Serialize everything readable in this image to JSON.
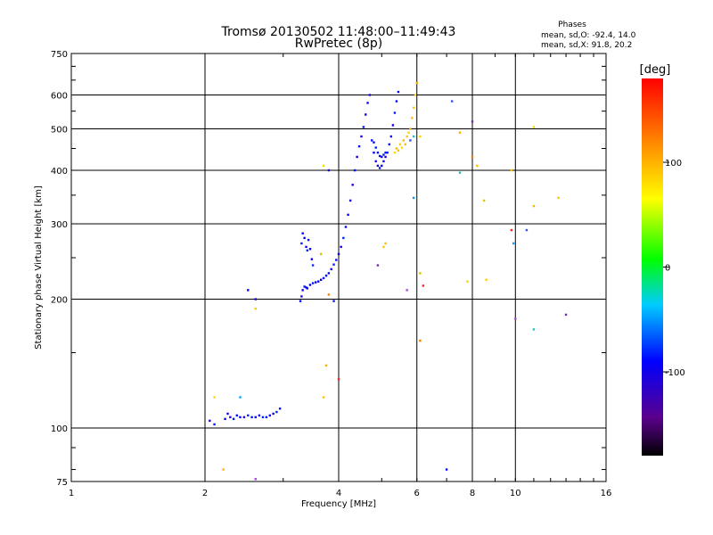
{
  "chart_data": {
    "type": "scatter",
    "title": "Tromsø 20130502 11:48:00–11:49:43",
    "subtitle": "RwPretec (8p)",
    "xlabel": "Frequency [MHz]",
    "ylabel": "Stationary phase Virtual Height [km]",
    "x_scale": "log",
    "y_scale": "log",
    "xlim": [
      1,
      16
    ],
    "ylim": [
      75,
      750
    ],
    "x_ticks": [
      1,
      2,
      4,
      6,
      8,
      10,
      16
    ],
    "x_tick_labels": [
      "1",
      "2",
      "4",
      "6",
      "8",
      "10",
      "16"
    ],
    "y_ticks": [
      75,
      100,
      200,
      300,
      400,
      500,
      600,
      750
    ],
    "y_tick_labels": [
      "75",
      "100",
      "200",
      "300",
      "400",
      "500",
      "600",
      "750"
    ],
    "grid": true,
    "phases_box": {
      "title": "Phases",
      "line1": "mean, sd,O: -92.4, 14.0",
      "line2": "mean, sd,X:  91.8, 20.2"
    },
    "colorbar": {
      "label": "[deg]",
      "range": [
        -180,
        180
      ],
      "ticks": [
        100,
        0,
        -100
      ],
      "tick_labels": [
        "100",
        "0",
        "-100"
      ]
    },
    "series": [
      {
        "mode": "O",
        "phase": -92,
        "points": [
          [
            2.05,
            104
          ],
          [
            2.1,
            102
          ],
          [
            2.22,
            105
          ],
          [
            2.25,
            108
          ],
          [
            2.28,
            106
          ],
          [
            2.32,
            105
          ],
          [
            2.36,
            107
          ],
          [
            2.4,
            106
          ],
          [
            2.45,
            106
          ],
          [
            2.5,
            107
          ],
          [
            2.55,
            106
          ],
          [
            2.6,
            106
          ],
          [
            2.65,
            107
          ],
          [
            2.7,
            106
          ],
          [
            2.75,
            106
          ],
          [
            2.8,
            107
          ],
          [
            2.85,
            108
          ],
          [
            2.9,
            109
          ],
          [
            2.95,
            111
          ],
          [
            3.28,
            198
          ],
          [
            3.3,
            203
          ],
          [
            3.32,
            210
          ],
          [
            3.35,
            214
          ],
          [
            3.38,
            213
          ],
          [
            3.4,
            212
          ],
          [
            3.45,
            216
          ],
          [
            3.5,
            218
          ],
          [
            3.55,
            219
          ],
          [
            3.6,
            220
          ],
          [
            3.65,
            222
          ],
          [
            3.7,
            224
          ],
          [
            3.75,
            227
          ],
          [
            3.8,
            230
          ],
          [
            3.85,
            235
          ],
          [
            3.9,
            241
          ],
          [
            3.95,
            247
          ],
          [
            4.0,
            255
          ],
          [
            4.05,
            265
          ],
          [
            4.1,
            278
          ],
          [
            4.15,
            295
          ],
          [
            4.2,
            315
          ],
          [
            4.25,
            340
          ],
          [
            4.3,
            370
          ],
          [
            4.35,
            400
          ],
          [
            4.4,
            430
          ],
          [
            4.45,
            455
          ],
          [
            4.5,
            480
          ],
          [
            4.55,
            505
          ],
          [
            4.6,
            540
          ],
          [
            4.65,
            575
          ],
          [
            4.7,
            600
          ],
          [
            3.3,
            270
          ],
          [
            3.32,
            285
          ],
          [
            3.35,
            278
          ],
          [
            3.38,
            265
          ],
          [
            3.4,
            260
          ],
          [
            3.42,
            275
          ],
          [
            3.45,
            262
          ],
          [
            3.48,
            248
          ],
          [
            3.5,
            240
          ],
          [
            4.75,
            470
          ],
          [
            4.8,
            440
          ],
          [
            4.85,
            420
          ],
          [
            4.9,
            410
          ],
          [
            4.95,
            405
          ],
          [
            5.0,
            410
          ],
          [
            5.05,
            420
          ],
          [
            5.1,
            430
          ],
          [
            5.15,
            440
          ],
          [
            5.2,
            460
          ],
          [
            5.25,
            480
          ],
          [
            5.3,
            510
          ],
          [
            5.35,
            545
          ],
          [
            5.4,
            580
          ],
          [
            5.45,
            610
          ],
          [
            4.8,
            465
          ],
          [
            4.85,
            452
          ],
          [
            4.9,
            440
          ],
          [
            4.95,
            432
          ],
          [
            5.0,
            430
          ],
          [
            5.05,
            435
          ],
          [
            5.1,
            440
          ],
          [
            2.5,
            210
          ],
          [
            2.6,
            200
          ],
          [
            3.8,
            400
          ],
          [
            3.9,
            198
          ],
          [
            7.0,
            80
          ]
        ]
      },
      {
        "mode": "X",
        "phase": 92,
        "points": [
          [
            5.35,
            440
          ],
          [
            5.4,
            450
          ],
          [
            5.45,
            445
          ],
          [
            5.5,
            460
          ],
          [
            5.55,
            452
          ],
          [
            5.6,
            470
          ],
          [
            5.65,
            460
          ],
          [
            5.7,
            480
          ],
          [
            5.75,
            490
          ],
          [
            5.8,
            500
          ],
          [
            5.85,
            530
          ],
          [
            5.9,
            560
          ],
          [
            5.95,
            600
          ],
          [
            6.0,
            640
          ],
          [
            5.1,
            270
          ],
          [
            5.05,
            265
          ],
          [
            6.1,
            480
          ],
          [
            7.5,
            490
          ],
          [
            8.2,
            410
          ],
          [
            9.8,
            400
          ],
          [
            8.6,
            222
          ],
          [
            11.0,
            505
          ],
          [
            11.0,
            330
          ],
          [
            12.5,
            345
          ],
          [
            7.8,
            220
          ],
          [
            3.7,
            410
          ],
          [
            3.75,
            140
          ],
          [
            3.7,
            118
          ],
          [
            2.6,
            190
          ],
          [
            2.1,
            118
          ],
          [
            2.2,
            80
          ]
        ]
      },
      {
        "mode": "noise",
        "phase": null,
        "points": [
          [
            7.2,
            580
          ],
          [
            7.5,
            395
          ],
          [
            8.0,
            520
          ],
          [
            8.0,
            430
          ],
          [
            8.5,
            340
          ],
          [
            9.8,
            290
          ],
          [
            9.9,
            270
          ],
          [
            10.0,
            180
          ],
          [
            10.6,
            290
          ],
          [
            11.0,
            170
          ],
          [
            13.0,
            184
          ],
          [
            6.1,
            160
          ],
          [
            6.1,
            230
          ],
          [
            6.2,
            215
          ],
          [
            5.9,
            345
          ],
          [
            5.7,
            210
          ],
          [
            5.8,
            470
          ],
          [
            5.9,
            480
          ],
          [
            4.9,
            240
          ],
          [
            3.8,
            205
          ],
          [
            3.65,
            255
          ],
          [
            4.0,
            130
          ],
          [
            2.4,
            118
          ],
          [
            2.6,
            76
          ]
        ]
      }
    ]
  }
}
